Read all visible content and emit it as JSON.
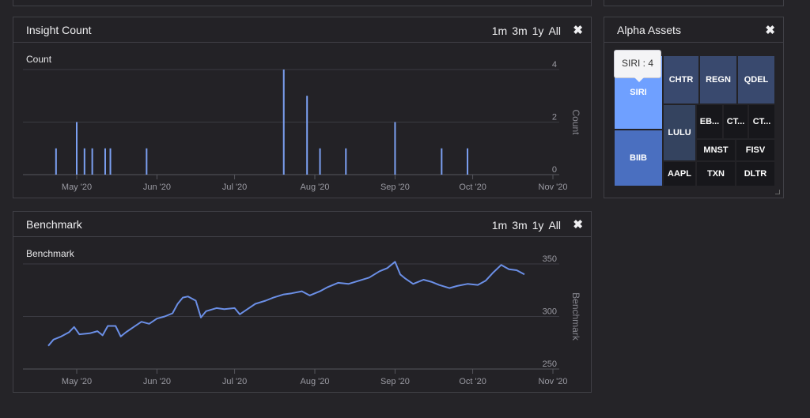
{
  "range_buttons": [
    "1m",
    "3m",
    "1y",
    "All"
  ],
  "insight_panel": {
    "title": "Insight Count",
    "chart_data": {
      "type": "bar",
      "title": "Count",
      "ylabel": "Count",
      "xlabel": "",
      "x_ticks": [
        "May '20",
        "Jun '20",
        "Jul '20",
        "Aug '20",
        "Sep '20",
        "Oct '20",
        "Nov '20"
      ],
      "y_ticks": [
        "0",
        "2",
        "4"
      ],
      "ylim": [
        0,
        4
      ],
      "x_range": [
        "2020-04-17",
        "2020-11-01"
      ],
      "bar_color": "#7b9ff0",
      "points": [
        {
          "x": "2020-04-23",
          "y": 1
        },
        {
          "x": "2020-05-01",
          "y": 2
        },
        {
          "x": "2020-05-04",
          "y": 1
        },
        {
          "x": "2020-05-07",
          "y": 1
        },
        {
          "x": "2020-05-12",
          "y": 1
        },
        {
          "x": "2020-05-14",
          "y": 1
        },
        {
          "x": "2020-05-28",
          "y": 1
        },
        {
          "x": "2020-07-20",
          "y": 4
        },
        {
          "x": "2020-07-29",
          "y": 3
        },
        {
          "x": "2020-08-03",
          "y": 1
        },
        {
          "x": "2020-08-13",
          "y": 1
        },
        {
          "x": "2020-09-01",
          "y": 2
        },
        {
          "x": "2020-09-19",
          "y": 1
        },
        {
          "x": "2020-09-29",
          "y": 1
        }
      ]
    }
  },
  "benchmark_panel": {
    "title": "Benchmark",
    "chart_data": {
      "type": "line",
      "title": "Benchmark",
      "ylabel": "Benchmark",
      "xlabel": "",
      "x_ticks": [
        "May '20",
        "Jun '20",
        "Jul '20",
        "Aug '20",
        "Sep '20",
        "Oct '20",
        "Nov '20"
      ],
      "y_ticks": [
        "250",
        "300",
        "350"
      ],
      "ylim": [
        250,
        350
      ],
      "x_range": [
        "2020-04-17",
        "2020-11-01"
      ],
      "line_color": "#6b8fe6",
      "points": [
        {
          "x": "2020-04-20",
          "y": 272
        },
        {
          "x": "2020-04-22",
          "y": 278
        },
        {
          "x": "2020-04-25",
          "y": 281
        },
        {
          "x": "2020-04-28",
          "y": 285
        },
        {
          "x": "2020-04-30",
          "y": 290
        },
        {
          "x": "2020-05-02",
          "y": 283
        },
        {
          "x": "2020-05-06",
          "y": 284
        },
        {
          "x": "2020-05-09",
          "y": 286
        },
        {
          "x": "2020-05-11",
          "y": 282
        },
        {
          "x": "2020-05-13",
          "y": 291
        },
        {
          "x": "2020-05-16",
          "y": 291
        },
        {
          "x": "2020-05-18",
          "y": 281
        },
        {
          "x": "2020-05-20",
          "y": 285
        },
        {
          "x": "2020-05-23",
          "y": 290
        },
        {
          "x": "2020-05-26",
          "y": 295
        },
        {
          "x": "2020-05-29",
          "y": 293
        },
        {
          "x": "2020-06-01",
          "y": 298
        },
        {
          "x": "2020-06-04",
          "y": 300
        },
        {
          "x": "2020-06-07",
          "y": 303
        },
        {
          "x": "2020-06-09",
          "y": 312
        },
        {
          "x": "2020-06-11",
          "y": 318
        },
        {
          "x": "2020-06-13",
          "y": 319
        },
        {
          "x": "2020-06-16",
          "y": 315
        },
        {
          "x": "2020-06-18",
          "y": 299
        },
        {
          "x": "2020-06-20",
          "y": 305
        },
        {
          "x": "2020-06-24",
          "y": 308
        },
        {
          "x": "2020-06-27",
          "y": 307
        },
        {
          "x": "2020-07-01",
          "y": 308
        },
        {
          "x": "2020-07-03",
          "y": 302
        },
        {
          "x": "2020-07-06",
          "y": 307
        },
        {
          "x": "2020-07-09",
          "y": 312
        },
        {
          "x": "2020-07-13",
          "y": 315
        },
        {
          "x": "2020-07-16",
          "y": 318
        },
        {
          "x": "2020-07-20",
          "y": 321
        },
        {
          "x": "2020-07-23",
          "y": 322
        },
        {
          "x": "2020-07-27",
          "y": 324
        },
        {
          "x": "2020-07-30",
          "y": 320
        },
        {
          "x": "2020-08-03",
          "y": 324
        },
        {
          "x": "2020-08-06",
          "y": 328
        },
        {
          "x": "2020-08-10",
          "y": 332
        },
        {
          "x": "2020-08-14",
          "y": 331
        },
        {
          "x": "2020-08-18",
          "y": 334
        },
        {
          "x": "2020-08-22",
          "y": 337
        },
        {
          "x": "2020-08-26",
          "y": 343
        },
        {
          "x": "2020-08-29",
          "y": 346
        },
        {
          "x": "2020-09-01",
          "y": 352
        },
        {
          "x": "2020-09-03",
          "y": 340
        },
        {
          "x": "2020-09-05",
          "y": 336
        },
        {
          "x": "2020-09-08",
          "y": 331
        },
        {
          "x": "2020-09-12",
          "y": 335
        },
        {
          "x": "2020-09-15",
          "y": 333
        },
        {
          "x": "2020-09-18",
          "y": 330
        },
        {
          "x": "2020-09-22",
          "y": 327
        },
        {
          "x": "2020-09-25",
          "y": 329
        },
        {
          "x": "2020-09-29",
          "y": 331
        },
        {
          "x": "2020-10-03",
          "y": 330
        },
        {
          "x": "2020-10-06",
          "y": 334
        },
        {
          "x": "2020-10-09",
          "y": 342
        },
        {
          "x": "2020-10-12",
          "y": 349
        },
        {
          "x": "2020-10-15",
          "y": 345
        },
        {
          "x": "2020-10-18",
          "y": 344
        },
        {
          "x": "2020-10-21",
          "y": 340
        }
      ]
    }
  },
  "alpha_panel": {
    "title": "Alpha Assets",
    "tooltip": "SIRI : 4",
    "cells": [
      {
        "label": "SIRI",
        "color": "#6fa0ff"
      },
      {
        "label": "BIIB",
        "color": "#4a6fc0"
      },
      {
        "label": "CHTR",
        "color": "#39496e"
      },
      {
        "label": "REGN",
        "color": "#39496e"
      },
      {
        "label": "QDEL",
        "color": "#39496e"
      },
      {
        "label": "LULU",
        "color": "#34435f"
      },
      {
        "label": "EB...",
        "color": "#17171b"
      },
      {
        "label": "CT...",
        "color": "#17171b"
      },
      {
        "label": "CT...",
        "color": "#17171b"
      },
      {
        "label": "MNST",
        "color": "#17171b"
      },
      {
        "label": "FISV",
        "color": "#17171b"
      },
      {
        "label": "AAPL",
        "color": "#17171b"
      },
      {
        "label": "TXN",
        "color": "#17171b"
      },
      {
        "label": "DLTR",
        "color": "#17171b"
      }
    ]
  }
}
